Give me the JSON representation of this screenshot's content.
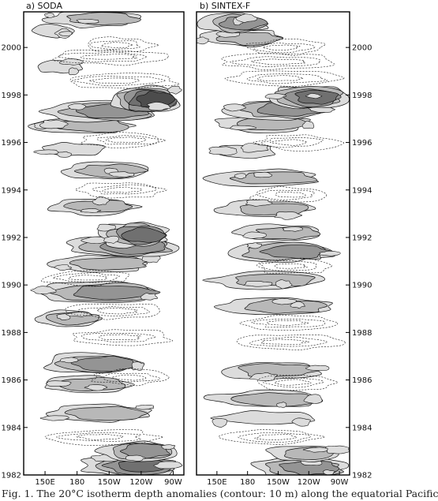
{
  "caption": "Fig. 1. The 20°C isotherm depth anomalies (contour: 10 m) along the equatorial Pacific",
  "chart_data": [
    {
      "type": "heatmap",
      "title": "a) SODA",
      "x_ticks": [
        "150E",
        "180",
        "150W",
        "120W",
        "90W"
      ],
      "x_tick_values": [
        150,
        180,
        210,
        240,
        270
      ],
      "xlim": [
        130,
        280
      ],
      "y_ticks": [
        "1982",
        "1984",
        "1986",
        "1988",
        "1990",
        "1992",
        "1994",
        "1996",
        "1998",
        "2000"
      ],
      "y_tick_values": [
        1982,
        1984,
        1986,
        1988,
        1990,
        1992,
        1994,
        1996,
        1998,
        2000
      ],
      "ylim": [
        1982,
        2001.5
      ],
      "y_axis_side": "left",
      "contour_interval": 10,
      "contour_interval_unit": "m",
      "shaded": "positive anomalies (darker = larger)",
      "dashed": "negative anomalies",
      "positive_bands": [
        {
          "t": 1982.4,
          "level": 4,
          "lon": [
            185,
            275
          ]
        },
        {
          "t": 1983.0,
          "level": 3,
          "lon": [
            200,
            270
          ]
        },
        {
          "t": 1984.6,
          "level": 2,
          "lon": [
            150,
            250
          ]
        },
        {
          "t": 1985.8,
          "level": 2,
          "lon": [
            145,
            230
          ]
        },
        {
          "t": 1986.7,
          "level": 3,
          "lon": [
            150,
            240
          ]
        },
        {
          "t": 1988.6,
          "level": 2,
          "lon": [
            140,
            200
          ]
        },
        {
          "t": 1989.7,
          "level": 3,
          "lon": [
            140,
            260
          ]
        },
        {
          "t": 1990.9,
          "level": 2,
          "lon": [
            150,
            250
          ]
        },
        {
          "t": 1991.6,
          "level": 3,
          "lon": [
            170,
            270
          ]
        },
        {
          "t": 1992.1,
          "level": 4,
          "lon": [
            200,
            265
          ]
        },
        {
          "t": 1993.3,
          "level": 2,
          "lon": [
            155,
            235
          ]
        },
        {
          "t": 1994.8,
          "level": 2,
          "lon": [
            165,
            245
          ]
        },
        {
          "t": 1995.7,
          "level": 1,
          "lon": [
            145,
            205
          ]
        },
        {
          "t": 1996.7,
          "level": 2,
          "lon": [
            140,
            230
          ]
        },
        {
          "t": 1997.3,
          "level": 3,
          "lon": [
            150,
            255
          ]
        },
        {
          "t": 1997.8,
          "level": 5,
          "lon": [
            210,
            275
          ]
        },
        {
          "t": 1999.2,
          "level": 1,
          "lon": [
            140,
            185
          ]
        },
        {
          "t": 2000.7,
          "level": 1,
          "lon": [
            140,
            175
          ]
        },
        {
          "t": 2001.2,
          "level": 2,
          "lon": [
            150,
            240
          ]
        }
      ],
      "negative_bands": [
        {
          "t": 1983.6,
          "lon": [
            150,
            250
          ]
        },
        {
          "t": 1986.1,
          "lon": [
            195,
            265
          ]
        },
        {
          "t": 1987.8,
          "lon": [
            175,
            265
          ]
        },
        {
          "t": 1988.9,
          "lon": [
            175,
            265
          ]
        },
        {
          "t": 1990.3,
          "lon": [
            150,
            230
          ]
        },
        {
          "t": 1994.0,
          "lon": [
            180,
            260
          ]
        },
        {
          "t": 1996.1,
          "lon": [
            185,
            265
          ]
        },
        {
          "t": 1998.6,
          "lon": [
            165,
            270
          ]
        },
        {
          "t": 1999.6,
          "lon": [
            155,
            265
          ]
        },
        {
          "t": 2000.1,
          "lon": [
            185,
            250
          ]
        }
      ]
    },
    {
      "type": "heatmap",
      "title": "b) SINTEX-F",
      "x_ticks": [
        "150E",
        "180",
        "150W",
        "120W",
        "90W"
      ],
      "x_tick_values": [
        150,
        180,
        210,
        240,
        270
      ],
      "xlim": [
        130,
        280
      ],
      "y_ticks": [
        "1982",
        "1984",
        "1986",
        "1988",
        "1990",
        "1992",
        "1994",
        "1996",
        "1998",
        "2000"
      ],
      "y_tick_values": [
        1982,
        1984,
        1986,
        1988,
        1990,
        1992,
        1994,
        1996,
        1998,
        2000
      ],
      "ylim": [
        1982,
        2001.5
      ],
      "y_axis_side": "right",
      "contour_interval": 10,
      "contour_interval_unit": "m",
      "shaded": "positive anomalies (darker = larger)",
      "dashed": "negative anomalies",
      "positive_bands": [
        {
          "t": 1982.3,
          "level": 3,
          "lon": [
            185,
            275
          ]
        },
        {
          "t": 1982.9,
          "level": 2,
          "lon": [
            200,
            270
          ]
        },
        {
          "t": 1984.4,
          "level": 1,
          "lon": [
            150,
            245
          ]
        },
        {
          "t": 1985.2,
          "level": 2,
          "lon": [
            145,
            255
          ]
        },
        {
          "t": 1986.4,
          "level": 2,
          "lon": [
            150,
            250
          ]
        },
        {
          "t": 1989.1,
          "level": 2,
          "lon": [
            150,
            265
          ]
        },
        {
          "t": 1990.2,
          "level": 2,
          "lon": [
            145,
            250
          ]
        },
        {
          "t": 1991.4,
          "level": 3,
          "lon": [
            160,
            265
          ]
        },
        {
          "t": 1992.2,
          "level": 2,
          "lon": [
            170,
            255
          ]
        },
        {
          "t": 1993.2,
          "level": 2,
          "lon": [
            150,
            240
          ]
        },
        {
          "t": 1994.5,
          "level": 2,
          "lon": [
            145,
            250
          ]
        },
        {
          "t": 1995.6,
          "level": 1,
          "lon": [
            145,
            210
          ]
        },
        {
          "t": 1996.8,
          "level": 2,
          "lon": [
            150,
            240
          ]
        },
        {
          "t": 1997.4,
          "level": 3,
          "lon": [
            160,
            260
          ]
        },
        {
          "t": 1997.9,
          "level": 4,
          "lon": [
            200,
            275
          ]
        },
        {
          "t": 2000.4,
          "level": 2,
          "lon": [
            135,
            215
          ]
        },
        {
          "t": 2001.0,
          "level": 3,
          "lon": [
            135,
            200
          ]
        }
      ],
      "negative_bands": [
        {
          "t": 1983.6,
          "lon": [
            160,
            250
          ]
        },
        {
          "t": 1985.9,
          "lon": [
            190,
            265
          ]
        },
        {
          "t": 1987.6,
          "lon": [
            170,
            265
          ]
        },
        {
          "t": 1988.4,
          "lon": [
            175,
            265
          ]
        },
        {
          "t": 1990.8,
          "lon": [
            185,
            260
          ]
        },
        {
          "t": 1993.8,
          "lon": [
            185,
            260
          ]
        },
        {
          "t": 1996.0,
          "lon": [
            185,
            265
          ]
        },
        {
          "t": 1998.7,
          "lon": [
            160,
            270
          ]
        },
        {
          "t": 1999.4,
          "lon": [
            150,
            265
          ]
        },
        {
          "t": 2000.0,
          "lon": [
            180,
            255
          ]
        }
      ]
    }
  ]
}
